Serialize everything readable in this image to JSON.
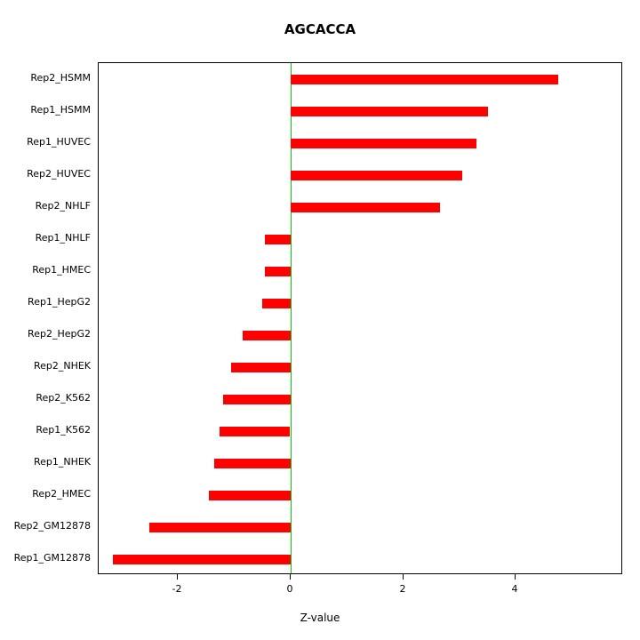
{
  "chart_data": {
    "type": "bar",
    "orientation": "horizontal",
    "title": "AGCACCA",
    "xlabel": "Z-value",
    "ylabel": "",
    "categories": [
      "Rep2_HSMM",
      "Rep1_HSMM",
      "Rep1_HUVEC",
      "Rep2_HUVEC",
      "Rep2_NHLF",
      "Rep1_NHLF",
      "Rep1_HMEC",
      "Rep1_HepG2",
      "Rep2_HepG2",
      "Rep2_NHEK",
      "Rep2_K562",
      "Rep1_K562",
      "Rep1_NHEK",
      "Rep2_HMEC",
      "Rep2_GM12878",
      "Rep1_GM12878"
    ],
    "values": [
      4.75,
      3.5,
      3.3,
      3.05,
      2.65,
      -0.45,
      -0.45,
      -0.5,
      -0.85,
      -1.05,
      -1.2,
      -1.25,
      -1.35,
      -1.45,
      -2.5,
      -3.15
    ],
    "xticks": [
      -2,
      0,
      2,
      4
    ],
    "xlim": [
      -3.4,
      5.9
    ],
    "grid": false,
    "legend": "none",
    "colors": {
      "bar": "#ff0000",
      "zero_line": "#00cc00",
      "axis": "#000000",
      "background": "#ffffff"
    }
  },
  "layout_note": "R-style horizontal barplot with baseline reference line at zero"
}
